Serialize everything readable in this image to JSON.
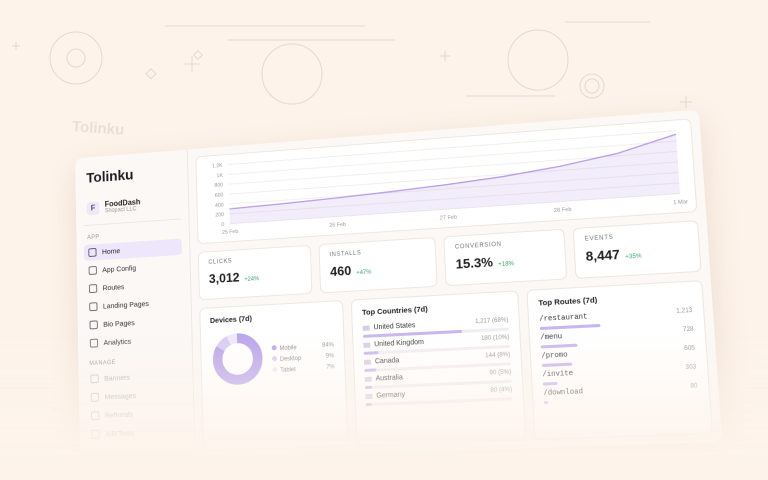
{
  "brand": "Tolinku",
  "workspace": {
    "initial": "F",
    "name": "FoodDash",
    "org": "Shopact LLC"
  },
  "nav": [
    {
      "section": "APP",
      "items": [
        "Home",
        "App Config",
        "Routes",
        "Landing Pages",
        "Bio Pages",
        "Analytics"
      ]
    },
    {
      "section": "MANAGE",
      "items": [
        "Banners",
        "Messages",
        "Referrals",
        "A/B Tests"
      ]
    }
  ],
  "chart": {
    "type": "line",
    "color": "#b79ce9",
    "x": [
      "25 Feb",
      null,
      "26 Feb",
      null,
      "27 Feb",
      null,
      "28 Feb",
      null,
      "1 Mar"
    ],
    "values": [
      300,
      330,
      370,
      420,
      480,
      560,
      680,
      850,
      1130
    ],
    "ylim": [
      0,
      1200
    ],
    "yticks": [
      0,
      200,
      400,
      600,
      800,
      {
        "value": 1000,
        "label": "1K"
      },
      {
        "value": 1200,
        "label": "1.2K"
      }
    ]
  },
  "stats": [
    {
      "label": "CLICKS",
      "value": "3,012",
      "change": "+24%"
    },
    {
      "label": "INSTALLS",
      "value": "460",
      "change": "+47%"
    },
    {
      "label": "CONVERSION",
      "value": "15.3%",
      "change": "+18%"
    },
    {
      "label": "EVENTS",
      "value": "8,447",
      "change": "+35%"
    }
  ],
  "devices": {
    "title": "Devices (7d)",
    "items": [
      {
        "name": "Mobile",
        "value": 84,
        "label": "84%",
        "color": "#b9a3ec"
      },
      {
        "name": "Desktop",
        "value": 9,
        "label": "9%",
        "color": "#d8cbf5"
      },
      {
        "name": "Tablet",
        "value": 7,
        "label": "7%",
        "color": "#eee8fb"
      }
    ]
  },
  "countries": {
    "title": "Top Countries (7d)",
    "items": [
      {
        "name": "United States",
        "label": "1,217 (68%)",
        "share": 68
      },
      {
        "name": "United Kingdom",
        "label": "180 (10%)",
        "share": 10
      },
      {
        "name": "Canada",
        "label": "144 (8%)",
        "share": 8
      },
      {
        "name": "Australia",
        "label": "90 (5%)",
        "share": 5
      },
      {
        "name": "Germany",
        "label": "80 (4%)",
        "share": 4
      }
    ]
  },
  "routes": {
    "title": "Top Routes (7d)",
    "items": [
      {
        "path": "/restaurant",
        "value": 1213,
        "label": "1,213"
      },
      {
        "path": "/menu",
        "value": 728,
        "label": "728"
      },
      {
        "path": "/promo",
        "value": 605,
        "label": "605"
      },
      {
        "path": "/invite",
        "value": 303,
        "label": "303"
      },
      {
        "path": "/download",
        "value": 80,
        "label": "80"
      }
    ]
  }
}
